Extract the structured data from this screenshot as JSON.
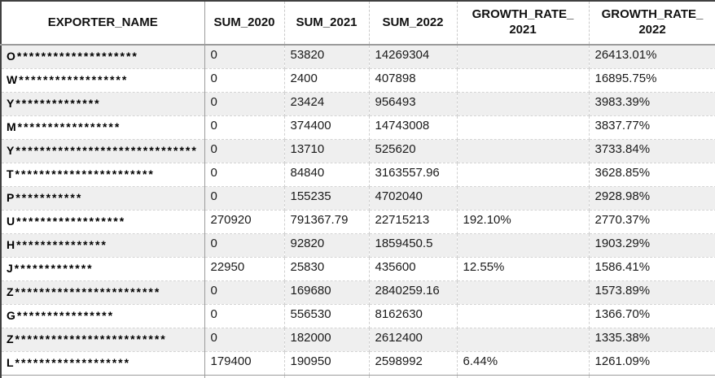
{
  "table": {
    "colors": {
      "band_row": "#efefef",
      "grid_line": "#cfcfcf",
      "outer_border": "#404040",
      "header_separator": "#9b9b9b",
      "text": "#1a1a1a"
    },
    "columns": [
      {
        "label": "EXPORTER_NAME",
        "line2": ""
      },
      {
        "label": "SUM_2020",
        "line2": ""
      },
      {
        "label": "SUM_2021",
        "line2": ""
      },
      {
        "label": "SUM_2022",
        "line2": ""
      },
      {
        "label": "GROWTH_RATE_",
        "line2": "2021"
      },
      {
        "label": "GROWTH_RATE_",
        "line2": "2022"
      }
    ],
    "rows": [
      {
        "exporter_name": "O********************",
        "sum_2020": "0",
        "sum_2021": "53820",
        "sum_2022": "14269304",
        "growth_rate_2021": "",
        "growth_rate_2022": "26413.01%"
      },
      {
        "exporter_name": "W******************",
        "sum_2020": "0",
        "sum_2021": "2400",
        "sum_2022": "407898",
        "growth_rate_2021": "",
        "growth_rate_2022": "16895.75%"
      },
      {
        "exporter_name": "Y**************",
        "sum_2020": "0",
        "sum_2021": "23424",
        "sum_2022": "956493",
        "growth_rate_2021": "",
        "growth_rate_2022": "3983.39%"
      },
      {
        "exporter_name": "M*****************",
        "sum_2020": "0",
        "sum_2021": "374400",
        "sum_2022": "14743008",
        "growth_rate_2021": "",
        "growth_rate_2022": "3837.77%"
      },
      {
        "exporter_name": "Y******************************",
        "sum_2020": "0",
        "sum_2021": "13710",
        "sum_2022": "525620",
        "growth_rate_2021": "",
        "growth_rate_2022": "3733.84%"
      },
      {
        "exporter_name": "T***********************",
        "sum_2020": "0",
        "sum_2021": "84840",
        "sum_2022": "3163557.96",
        "growth_rate_2021": "",
        "growth_rate_2022": "3628.85%"
      },
      {
        "exporter_name": "P***********",
        "sum_2020": "0",
        "sum_2021": "155235",
        "sum_2022": "4702040",
        "growth_rate_2021": "",
        "growth_rate_2022": "2928.98%"
      },
      {
        "exporter_name": "U******************",
        "sum_2020": "270920",
        "sum_2021": "791367.79",
        "sum_2022": "22715213",
        "growth_rate_2021": "192.10%",
        "growth_rate_2022": "2770.37%"
      },
      {
        "exporter_name": "H***************",
        "sum_2020": "0",
        "sum_2021": "92820",
        "sum_2022": "1859450.5",
        "growth_rate_2021": "",
        "growth_rate_2022": "1903.29%"
      },
      {
        "exporter_name": "J*************",
        "sum_2020": "22950",
        "sum_2021": "25830",
        "sum_2022": "435600",
        "growth_rate_2021": "12.55%",
        "growth_rate_2022": "1586.41%"
      },
      {
        "exporter_name": "Z************************",
        "sum_2020": "0",
        "sum_2021": "169680",
        "sum_2022": "2840259.16",
        "growth_rate_2021": "",
        "growth_rate_2022": "1573.89%"
      },
      {
        "exporter_name": "G****************",
        "sum_2020": "0",
        "sum_2021": "556530",
        "sum_2022": "8162630",
        "growth_rate_2021": "",
        "growth_rate_2022": "1366.70%"
      },
      {
        "exporter_name": "Z*************************",
        "sum_2020": "0",
        "sum_2021": "182000",
        "sum_2022": "2612400",
        "growth_rate_2021": "",
        "growth_rate_2022": "1335.38%"
      },
      {
        "exporter_name": "L*******************",
        "sum_2020": "179400",
        "sum_2021": "190950",
        "sum_2022": "2598992",
        "growth_rate_2021": "6.44%",
        "growth_rate_2022": "1261.09%"
      }
    ]
  }
}
